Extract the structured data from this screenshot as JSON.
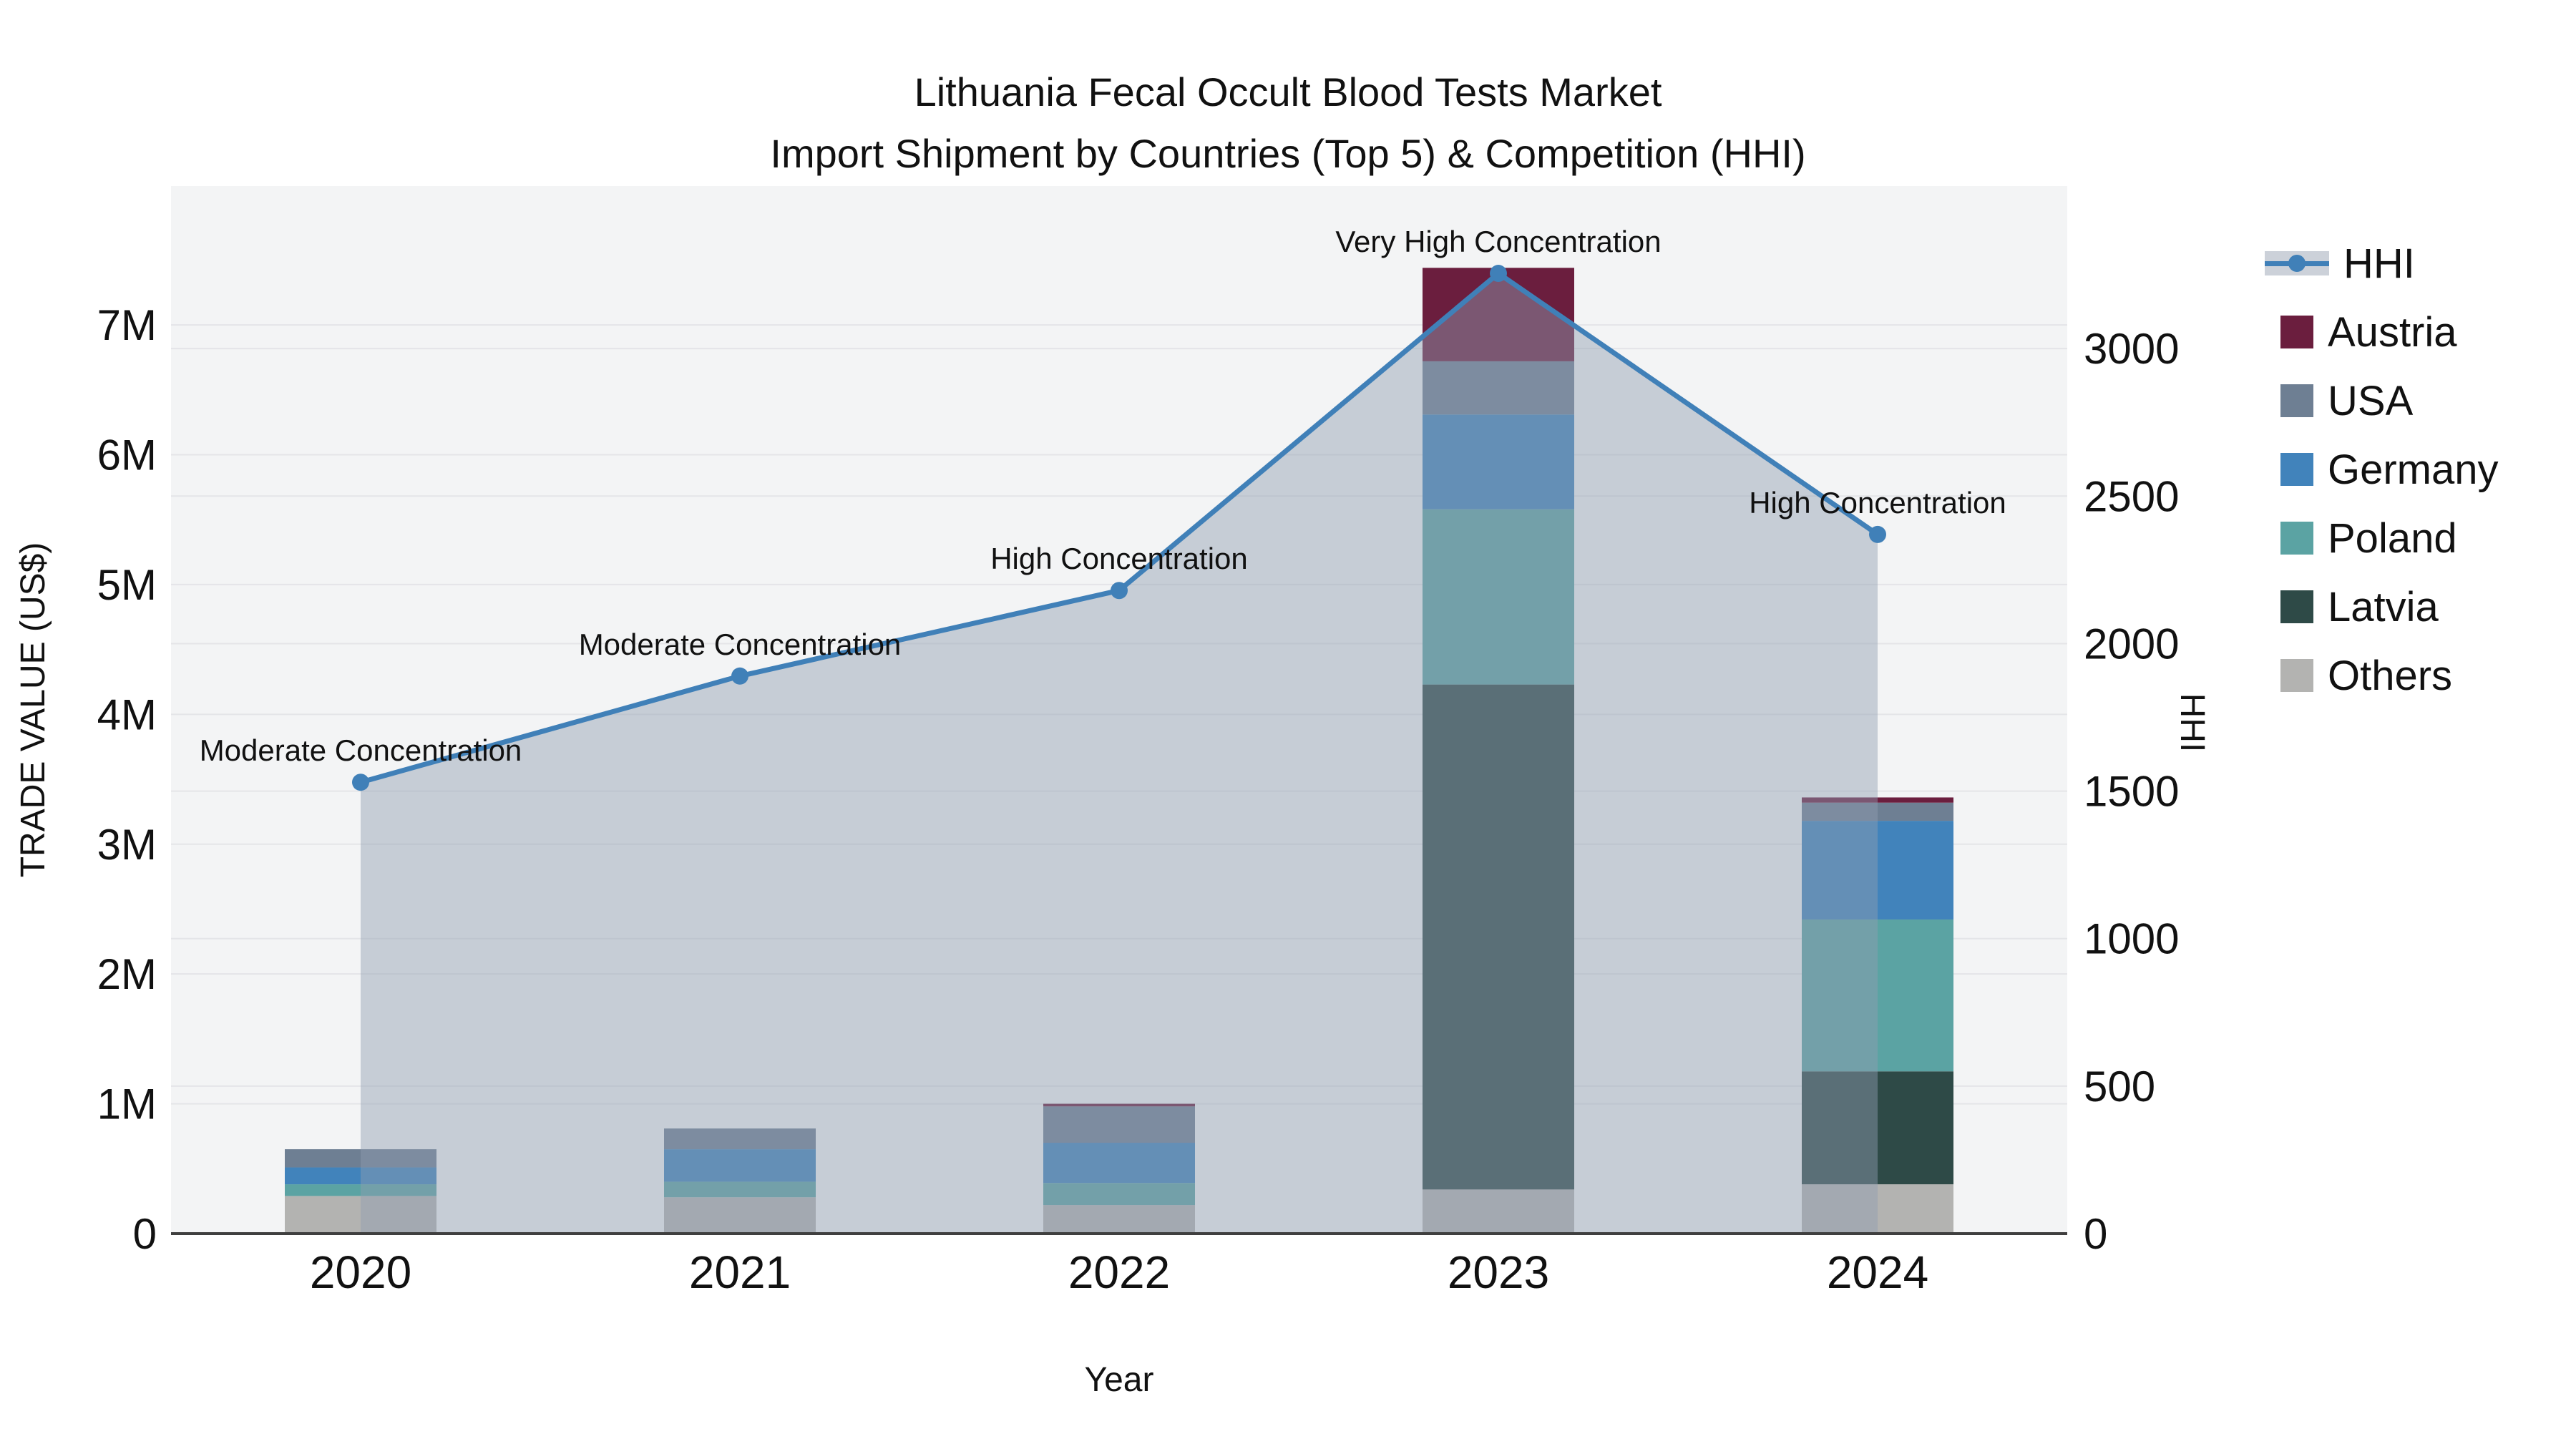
{
  "title": {
    "line1": "Lithuania Fecal Occult Blood Tests Market",
    "line2": "Import Shipment by Countries (Top 5) & Competition (HHI)"
  },
  "colors": {
    "hhi_line": "#4080b8",
    "hhi_band": "rgba(144,158,178,0.45)",
    "austria": "#6b1e3e",
    "usa": "#6e7f93",
    "germany": "#4183bb",
    "poland": "#5ba3a3",
    "latvia": "#2e4a47",
    "others": "#b3b3b1",
    "plot_background": "#f3f4f5",
    "gridline": "#e4e5e8",
    "axis_line": "#3f3f3f",
    "text": "#111111"
  },
  "legend": [
    {
      "label": "HHI",
      "type": "line",
      "color": "#4080b8"
    },
    {
      "label": "Austria",
      "type": "swatch",
      "color": "#6b1e3e"
    },
    {
      "label": "USA",
      "type": "swatch",
      "color": "#6e7f93"
    },
    {
      "label": "Germany",
      "type": "swatch",
      "color": "#4183bb"
    },
    {
      "label": "Poland",
      "type": "swatch",
      "color": "#5ba3a3"
    },
    {
      "label": "Latvia",
      "type": "swatch",
      "color": "#2e4a47"
    },
    {
      "label": "Others",
      "type": "swatch",
      "color": "#b3b3b1"
    }
  ],
  "chart_data": {
    "type": "bar",
    "subtype": "stacked-bars-with-line",
    "categories": [
      "2020",
      "2021",
      "2022",
      "2023",
      "2024"
    ],
    "bar_value_unit": "US$",
    "series": [
      {
        "name": "Others",
        "color": "#b3b3b1",
        "values": [
          290000,
          280000,
          220000,
          340000,
          380000
        ]
      },
      {
        "name": "Latvia",
        "color": "#2e4a47",
        "values": [
          0,
          0,
          0,
          3890000,
          870000
        ]
      },
      {
        "name": "Poland",
        "color": "#5ba3a3",
        "values": [
          90000,
          120000,
          170000,
          1350000,
          1170000
        ]
      },
      {
        "name": "Germany",
        "color": "#4183bb",
        "values": [
          130000,
          250000,
          310000,
          730000,
          760000
        ]
      },
      {
        "name": "USA",
        "color": "#6e7f93",
        "values": [
          140000,
          160000,
          280000,
          410000,
          140000
        ]
      },
      {
        "name": "Austria",
        "color": "#6b1e3e",
        "values": [
          0,
          0,
          20000,
          720000,
          40000
        ]
      }
    ],
    "line_series": {
      "name": "HHI",
      "color": "#4080b8",
      "band_color": "rgba(144,158,178,0.45)",
      "values": [
        1530,
        1890,
        2180,
        3255,
        2370
      ]
    },
    "annotations": [
      "Moderate Concentration",
      "Moderate Concentration",
      "High Concentration",
      "Very High Concentration",
      "High Concentration"
    ],
    "left_axis": {
      "title": "TRADE VALUE (US$)",
      "tick_labels": [
        "0",
        "1M",
        "2M",
        "3M",
        "4M",
        "5M",
        "6M",
        "7M"
      ],
      "tick_values": [
        0,
        1000000,
        2000000,
        3000000,
        4000000,
        5000000,
        6000000,
        7000000
      ],
      "range": [
        0,
        8070000
      ]
    },
    "right_axis": {
      "title": "HHI",
      "tick_labels": [
        "0",
        "500",
        "1000",
        "1500",
        "2000",
        "2500",
        "3000"
      ],
      "tick_values": [
        0,
        500,
        1000,
        1500,
        2000,
        2500,
        3000
      ],
      "range": [
        0,
        3551
      ]
    },
    "x_axis": {
      "title": "Year"
    },
    "grid": true,
    "legend_position": "right"
  }
}
